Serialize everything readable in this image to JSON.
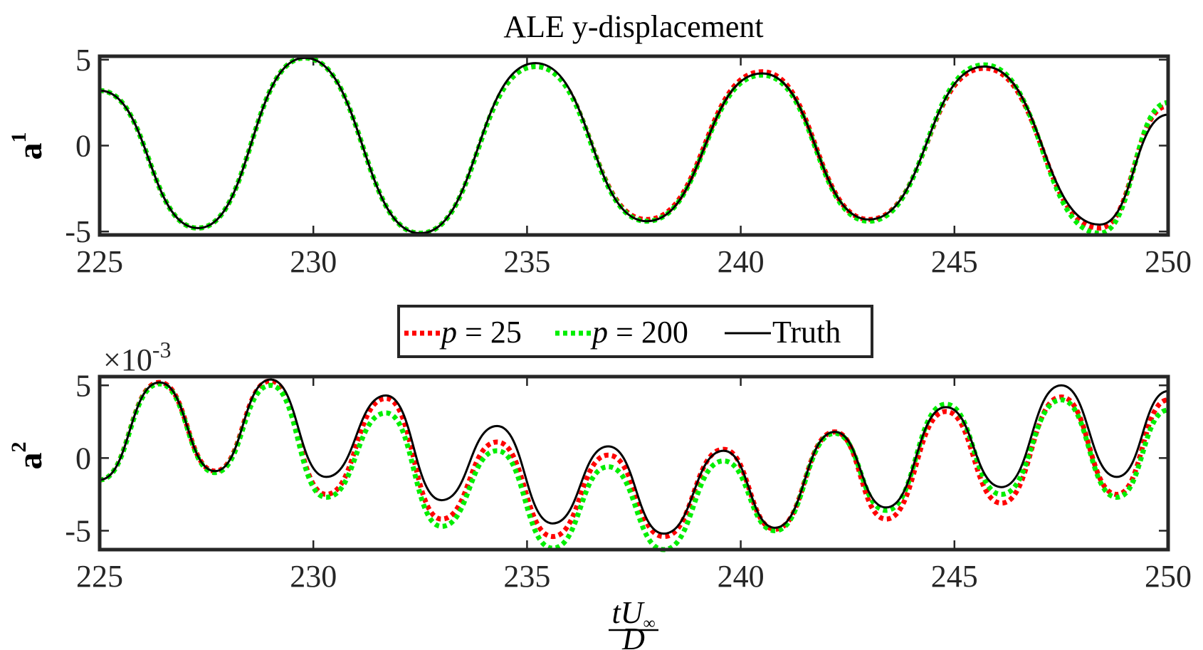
{
  "chart_data": [
    {
      "type": "line",
      "title": "ALE y-displacement",
      "ylabel": "a",
      "ylabel_sup": "1",
      "exponent": "",
      "xlim": [
        225,
        250
      ],
      "ylim": [
        -5.2,
        5.2
      ],
      "xticks": [
        225,
        230,
        235,
        240,
        245,
        250
      ],
      "xtick_labels": [
        "225",
        "230",
        "235",
        "240",
        "245",
        "250"
      ],
      "yticks": [
        5,
        0,
        -5
      ],
      "ytick_labels": [
        "5",
        "0",
        "-5"
      ],
      "grid": false,
      "x": [
        225.0,
        227.3,
        229.8,
        232.5,
        235.2,
        237.8,
        240.5,
        243.0,
        245.7,
        248.4,
        250.0
      ],
      "series": [
        {
          "name": "p = 25",
          "color": "#ff0000",
          "style": "dotted",
          "values": [
            3.2,
            -4.8,
            5.1,
            -5.1,
            4.6,
            -4.3,
            4.3,
            -4.3,
            4.5,
            -4.8,
            2.3
          ]
        },
        {
          "name": "p = 200",
          "color": "#00ee00",
          "style": "dotted",
          "values": [
            3.2,
            -4.8,
            5.1,
            -5.1,
            4.6,
            -4.4,
            4.1,
            -4.4,
            4.7,
            -5.1,
            2.5
          ]
        },
        {
          "name": "Truth",
          "color": "#000000",
          "style": "solid",
          "values": [
            3.2,
            -4.8,
            5.1,
            -5.1,
            4.8,
            -4.4,
            4.2,
            -4.3,
            4.6,
            -4.6,
            1.8
          ]
        }
      ]
    },
    {
      "type": "line",
      "title": "",
      "ylabel": "a",
      "ylabel_sup": "2",
      "exponent": "×10",
      "exponent_power": "-3",
      "xlim": [
        225,
        250
      ],
      "ylim": [
        -6.3,
        5.6
      ],
      "xticks": [
        225,
        230,
        235,
        240,
        245,
        250
      ],
      "xtick_labels": [
        "225",
        "230",
        "235",
        "240",
        "245",
        "250"
      ],
      "yticks": [
        5,
        0,
        -5
      ],
      "ytick_labels": [
        "5",
        "0",
        "-5"
      ],
      "xlabel_num": "tU",
      "xlabel_sub": "∞",
      "xlabel_den": "D",
      "grid": false,
      "x": [
        225.0,
        226.4,
        227.7,
        229.0,
        230.3,
        231.7,
        233.0,
        234.3,
        235.6,
        236.9,
        238.2,
        239.6,
        240.8,
        242.2,
        243.4,
        244.8,
        246.1,
        247.5,
        248.8,
        250.0
      ],
      "series": [
        {
          "name": "p = 25",
          "color": "#ff0000",
          "style": "dotted",
          "values": [
            -1.5,
            5.2,
            -0.9,
            5.3,
            -2.5,
            4.1,
            -4.2,
            1.1,
            -5.4,
            0.2,
            -5.4,
            0.6,
            -4.9,
            1.8,
            -4.2,
            3.2,
            -3.1,
            4.2,
            -2.5,
            4.0
          ]
        },
        {
          "name": "p = 200",
          "color": "#00ee00",
          "style": "dotted",
          "values": [
            -1.5,
            5.1,
            -1.0,
            5.0,
            -2.7,
            3.1,
            -4.7,
            0.5,
            -6.2,
            -0.6,
            -6.3,
            -0.2,
            -5.0,
            1.7,
            -3.6,
            3.7,
            -2.5,
            4.0,
            -2.7,
            3.3
          ]
        },
        {
          "name": "Truth",
          "color": "#000000",
          "style": "solid",
          "values": [
            -1.5,
            5.2,
            -0.9,
            5.4,
            -1.3,
            4.3,
            -2.9,
            2.2,
            -4.5,
            0.8,
            -5.2,
            0.5,
            -4.8,
            1.8,
            -3.4,
            3.5,
            -2.0,
            5.0,
            -1.3,
            4.6
          ]
        }
      ]
    }
  ],
  "legend": {
    "placement": "between panels",
    "entries": [
      {
        "var": "p",
        "rest": " = 25",
        "color": "#ff0000",
        "style": "dotted"
      },
      {
        "var": "p",
        "rest": " = 200",
        "color": "#00ee00",
        "style": "dotted"
      },
      {
        "var": "",
        "rest": "Truth",
        "color": "#000000",
        "style": "solid"
      }
    ]
  }
}
